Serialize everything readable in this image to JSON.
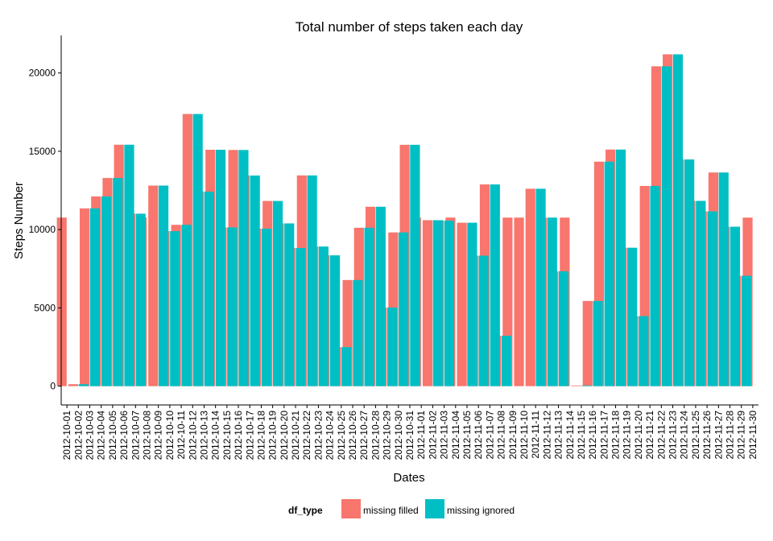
{
  "chart_data": {
    "type": "bar",
    "title": "Total number of steps taken each day",
    "xlabel": "Dates",
    "ylabel": "Steps Number",
    "ylim": [
      -1200,
      22400
    ],
    "yticks": [
      0,
      5000,
      10000,
      15000,
      20000
    ],
    "legend": {
      "title": "df_type",
      "position": "bottom"
    },
    "categories": [
      "2012-10-01",
      "2012-10-02",
      "2012-10-03",
      "2012-10-04",
      "2012-10-05",
      "2012-10-06",
      "2012-10-07",
      "2012-10-08",
      "2012-10-09",
      "2012-10-10",
      "2012-10-11",
      "2012-10-12",
      "2012-10-13",
      "2012-10-14",
      "2012-10-15",
      "2012-10-16",
      "2012-10-17",
      "2012-10-18",
      "2012-10-19",
      "2012-10-20",
      "2012-10-21",
      "2012-10-22",
      "2012-10-23",
      "2012-10-24",
      "2012-10-25",
      "2012-10-26",
      "2012-10-27",
      "2012-10-28",
      "2012-10-29",
      "2012-10-30",
      "2012-10-31",
      "2012-11-01",
      "2012-11-02",
      "2012-11-03",
      "2012-11-04",
      "2012-11-05",
      "2012-11-06",
      "2012-11-07",
      "2012-11-08",
      "2012-11-09",
      "2012-11-10",
      "2012-11-11",
      "2012-11-12",
      "2012-11-13",
      "2012-11-14",
      "2012-11-15",
      "2012-11-16",
      "2012-11-17",
      "2012-11-18",
      "2012-11-19",
      "2012-11-20",
      "2012-11-21",
      "2012-11-22",
      "2012-11-23",
      "2012-11-24",
      "2012-11-25",
      "2012-11-26",
      "2012-11-27",
      "2012-11-28",
      "2012-11-29",
      "2012-11-30"
    ],
    "series": [
      {
        "name": "missing filled",
        "color": "#f8766d",
        "values": [
          10766,
          126,
          11352,
          12116,
          13294,
          15420,
          11015,
          10766,
          12811,
          9900,
          10304,
          17382,
          12426,
          15098,
          10139,
          15084,
          13452,
          10056,
          11829,
          10395,
          8821,
          13460,
          8918,
          8355,
          2492,
          6778,
          10119,
          11458,
          5018,
          9819,
          15414,
          10766,
          10600,
          10571,
          10766,
          10439,
          8334,
          12883,
          3219,
          10766,
          10766,
          12608,
          10765,
          7336,
          10766,
          41,
          5441,
          14339,
          15110,
          8841,
          4472,
          12787,
          20427,
          21194,
          14478,
          11834,
          11162,
          13646,
          10183,
          7047,
          10766
        ]
      },
      {
        "name": "missing ignored",
        "color": "#00bfc4",
        "values": [
          null,
          126,
          11352,
          12116,
          13294,
          15420,
          11015,
          null,
          12811,
          9900,
          10304,
          17382,
          12426,
          15098,
          10139,
          15084,
          13452,
          10056,
          11829,
          10395,
          8821,
          13460,
          8918,
          8355,
          2492,
          6778,
          10119,
          11458,
          5018,
          9819,
          15414,
          null,
          10600,
          10571,
          null,
          10439,
          8334,
          12883,
          3219,
          null,
          null,
          12608,
          10765,
          7336,
          null,
          41,
          5441,
          14339,
          15110,
          8841,
          4472,
          12787,
          20427,
          21194,
          14478,
          11834,
          11162,
          13646,
          10183,
          7047,
          null
        ]
      }
    ]
  }
}
